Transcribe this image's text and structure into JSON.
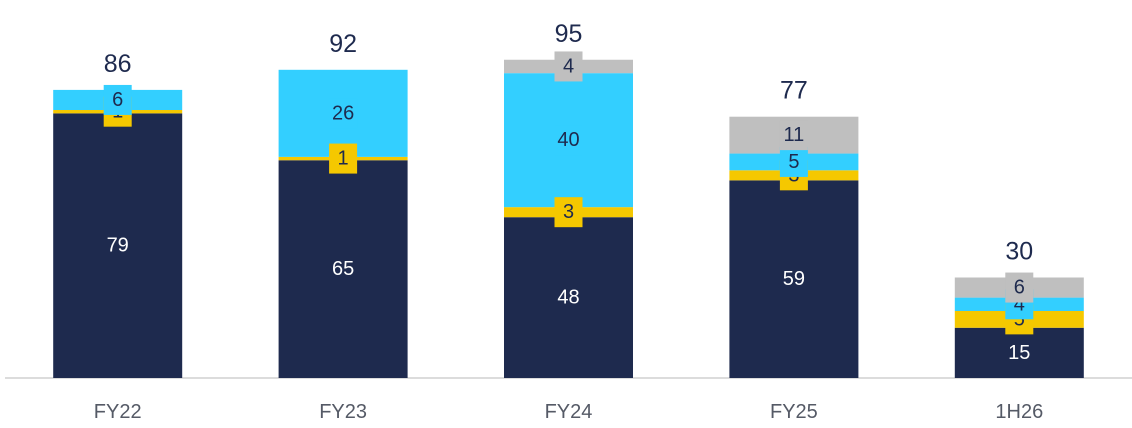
{
  "chart_data": {
    "type": "stacked_bar",
    "categories": [
      "FY22",
      "FY23",
      "FY24",
      "FY25",
      "1H26"
    ],
    "series": [
      {
        "color": "#1e2a4e",
        "values": [
          79,
          65,
          48,
          59,
          15
        ]
      },
      {
        "color": "#f5c800",
        "values": [
          1,
          1,
          3,
          3,
          5
        ]
      },
      {
        "color": "#33cfff",
        "values": [
          6,
          26,
          40,
          5,
          4
        ]
      },
      {
        "color": "#bfbfbf",
        "values": [
          null,
          null,
          4,
          11,
          6
        ]
      }
    ],
    "totals": [
      86,
      92,
      95,
      77,
      30
    ],
    "ylim": [
      0,
      100
    ]
  }
}
